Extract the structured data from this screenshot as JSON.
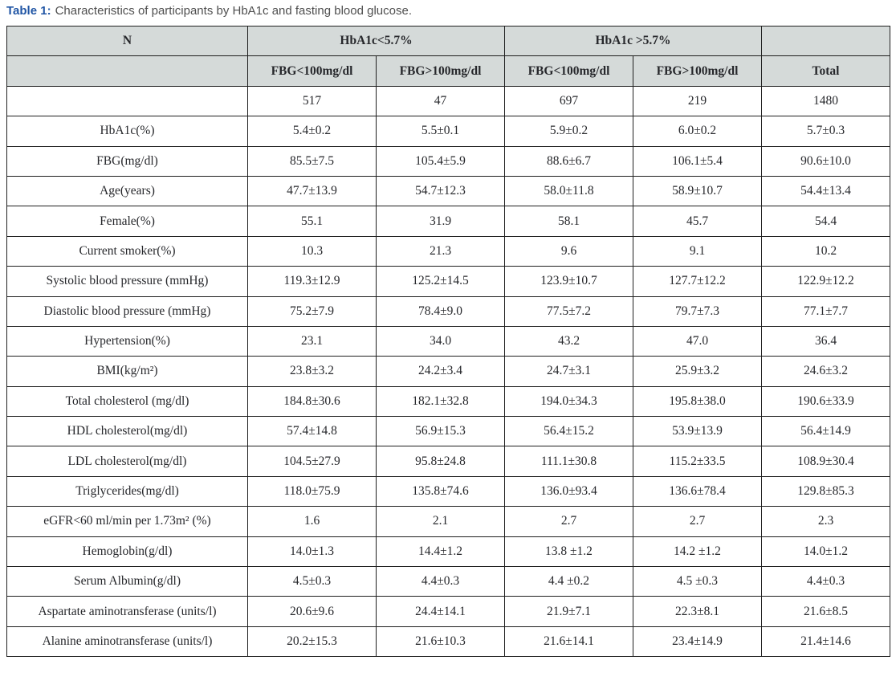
{
  "colors": {
    "page-bg": "#ffffff",
    "caption-accent": "#2156a5",
    "caption-text": "#4f4f4f",
    "header-bg": "#d5dad9",
    "border": "#1f1f1f",
    "cell-text": "#26272b"
  },
  "caption": {
    "label": "Table 1:",
    "text": "Characteristics of participants by HbA1c and fasting blood glucose."
  },
  "table": {
    "header": {
      "n": "N",
      "group1": "HbA1c<5.7%",
      "group2": "HbA1c >5.7%",
      "corner": "",
      "row2": [
        "",
        "FBG<100mg/dl",
        "FBG>100mg/dl",
        "FBG<100mg/dl",
        "FBG>100mg/dl",
        "Total"
      ]
    },
    "rows": [
      {
        "label": "",
        "values": [
          "517",
          "47",
          "697",
          "219",
          "1480"
        ]
      },
      {
        "label": "HbA1c(%)",
        "values": [
          "5.4±0.2",
          "5.5±0.1",
          "5.9±0.2",
          "6.0±0.2",
          "5.7±0.3"
        ]
      },
      {
        "label": "FBG(mg/dl)",
        "values": [
          "85.5±7.5",
          "105.4±5.9",
          "88.6±6.7",
          "106.1±5.4",
          "90.6±10.0"
        ]
      },
      {
        "label": "Age(years)",
        "values": [
          "47.7±13.9",
          "54.7±12.3",
          "58.0±11.8",
          "58.9±10.7",
          "54.4±13.4"
        ]
      },
      {
        "label": "Female(%)",
        "values": [
          "55.1",
          "31.9",
          "58.1",
          "45.7",
          "54.4"
        ]
      },
      {
        "label": "Current smoker(%)",
        "values": [
          "10.3",
          "21.3",
          "9.6",
          "9.1",
          "10.2"
        ]
      },
      {
        "label": "Systolic blood pressure (mmHg)",
        "values": [
          "119.3±12.9",
          "125.2±14.5",
          "123.9±10.7",
          "127.7±12.2",
          "122.9±12.2"
        ]
      },
      {
        "label": "Diastolic blood pressure (mmHg)",
        "values": [
          "75.2±7.9",
          "78.4±9.0",
          "77.5±7.2",
          "79.7±7.3",
          "77.1±7.7"
        ]
      },
      {
        "label": "Hypertension(%)",
        "values": [
          "23.1",
          "34.0",
          "43.2",
          "47.0",
          "36.4"
        ]
      },
      {
        "label": "BMI(kg/m²)",
        "values": [
          "23.8±3.2",
          "24.2±3.4",
          "24.7±3.1",
          "25.9±3.2",
          "24.6±3.2"
        ]
      },
      {
        "label": "Total cholesterol (mg/dl)",
        "values": [
          "184.8±30.6",
          "182.1±32.8",
          "194.0±34.3",
          "195.8±38.0",
          "190.6±33.9"
        ]
      },
      {
        "label": "HDL cholesterol(mg/dl)",
        "values": [
          "57.4±14.8",
          "56.9±15.3",
          "56.4±15.2",
          "53.9±13.9",
          "56.4±14.9"
        ]
      },
      {
        "label": "LDL cholesterol(mg/dl)",
        "values": [
          "104.5±27.9",
          "95.8±24.8",
          "111.1±30.8",
          "115.2±33.5",
          "108.9±30.4"
        ]
      },
      {
        "label": "Triglycerides(mg/dl)",
        "values": [
          "118.0±75.9",
          "135.8±74.6",
          "136.0±93.4",
          "136.6±78.4",
          "129.8±85.3"
        ]
      },
      {
        "label": "eGFR<60 ml/min per 1.73m² (%)",
        "values": [
          "1.6",
          "2.1",
          "2.7",
          "2.7",
          "2.3"
        ]
      },
      {
        "label": "Hemoglobin(g/dl)",
        "values": [
          "14.0±1.3",
          "14.4±1.2",
          "13.8 ±1.2",
          "14.2 ±1.2",
          "14.0±1.2"
        ]
      },
      {
        "label": "Serum Albumin(g/dl)",
        "values": [
          "4.5±0.3",
          "4.4±0.3",
          "4.4 ±0.2",
          "4.5 ±0.3",
          "4.4±0.3"
        ]
      },
      {
        "label": "Aspartate aminotransferase (units/l)",
        "values": [
          "20.6±9.6",
          "24.4±14.1",
          "21.9±7.1",
          "22.3±8.1",
          "21.6±8.5"
        ]
      },
      {
        "label": "Alanine aminotransferase (units/l)",
        "values": [
          "20.2±15.3",
          "21.6±10.3",
          "21.6±14.1",
          "23.4±14.9",
          "21.4±14.6"
        ]
      }
    ]
  }
}
